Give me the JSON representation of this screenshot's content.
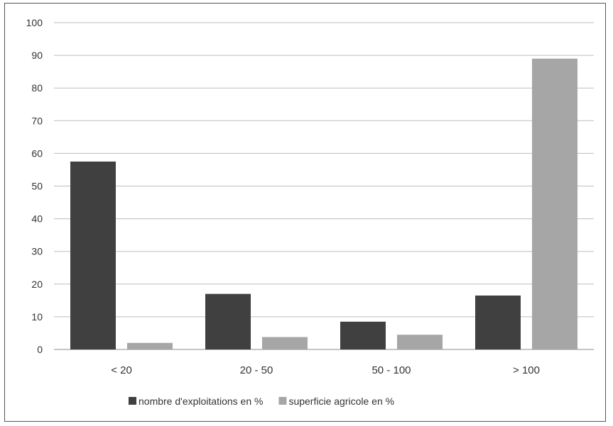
{
  "chart_data": {
    "type": "bar",
    "categories": [
      "< 20",
      "20 - 50",
      "50 - 100",
      "> 100"
    ],
    "series": [
      {
        "name": "nombre d'exploitations en %",
        "values": [
          57.5,
          17,
          8.5,
          16.5
        ],
        "color": "#404040"
      },
      {
        "name": "superficie agricole en %",
        "values": [
          2,
          3.8,
          4.5,
          89
        ],
        "color": "#a6a6a6"
      }
    ],
    "title": "",
    "xlabel": "",
    "ylabel": "",
    "ylim": [
      0,
      100
    ],
    "yticks": [
      "0",
      "10",
      "20",
      "30",
      "40",
      "50",
      "60",
      "70",
      "80",
      "90",
      "100"
    ],
    "grid": true,
    "legend": "bottom"
  }
}
